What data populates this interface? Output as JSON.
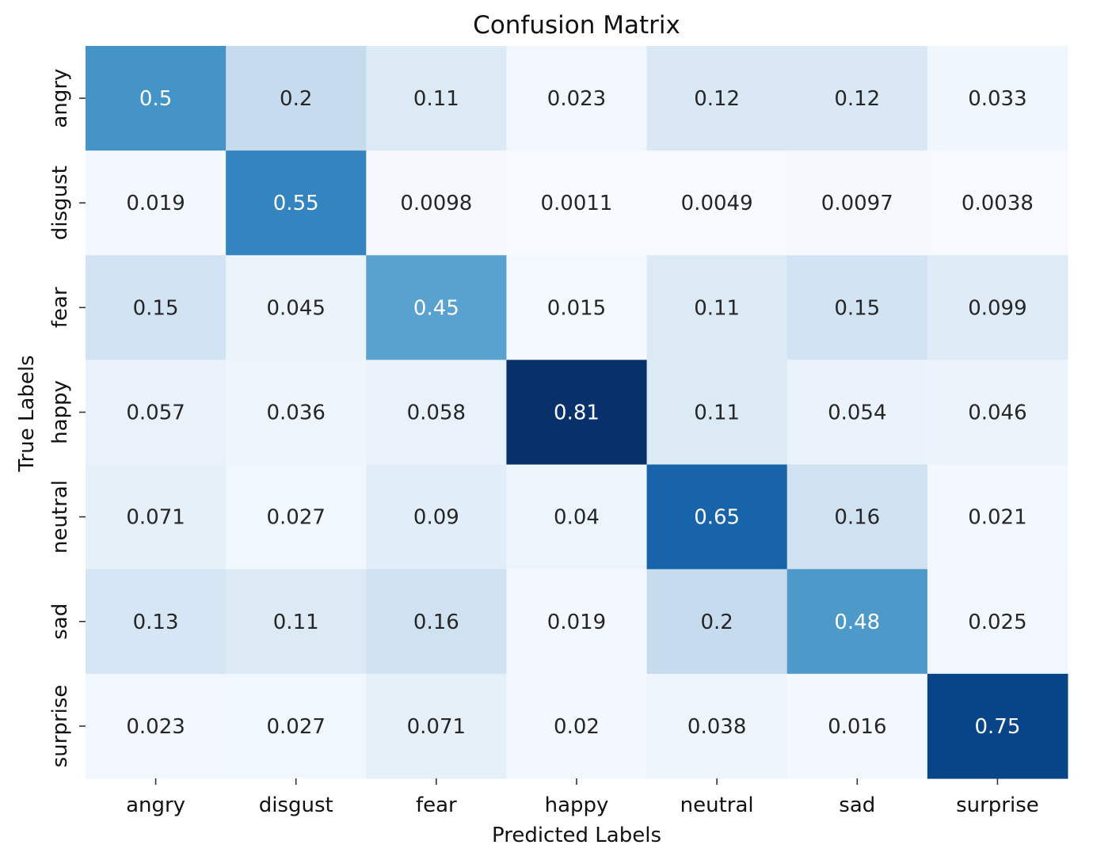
{
  "chart_data": {
    "type": "heatmap",
    "title": "Confusion Matrix",
    "xlabel": "Predicted Labels",
    "ylabel": "True Labels",
    "x_categories": [
      "angry",
      "disgust",
      "fear",
      "happy",
      "neutral",
      "sad",
      "surprise"
    ],
    "y_categories": [
      "angry",
      "disgust",
      "fear",
      "happy",
      "neutral",
      "sad",
      "surprise"
    ],
    "values": [
      [
        "0.5",
        "0.2",
        "0.11",
        "0.023",
        "0.12",
        "0.12",
        "0.033"
      ],
      [
        "0.019",
        "0.55",
        "0.0098",
        "0.0011",
        "0.0049",
        "0.0097",
        "0.0038"
      ],
      [
        "0.15",
        "0.045",
        "0.45",
        "0.015",
        "0.11",
        "0.15",
        "0.099"
      ],
      [
        "0.057",
        "0.036",
        "0.058",
        "0.81",
        "0.11",
        "0.054",
        "0.046"
      ],
      [
        "0.071",
        "0.027",
        "0.09",
        "0.04",
        "0.65",
        "0.16",
        "0.021"
      ],
      [
        "0.13",
        "0.11",
        "0.16",
        "0.019",
        "0.2",
        "0.48",
        "0.025"
      ],
      [
        "0.023",
        "0.027",
        "0.071",
        "0.02",
        "0.038",
        "0.016",
        "0.75"
      ]
    ],
    "colormap": "Blues",
    "color_range": [
      0,
      0.81
    ],
    "colorbar": false,
    "grid": false
  }
}
